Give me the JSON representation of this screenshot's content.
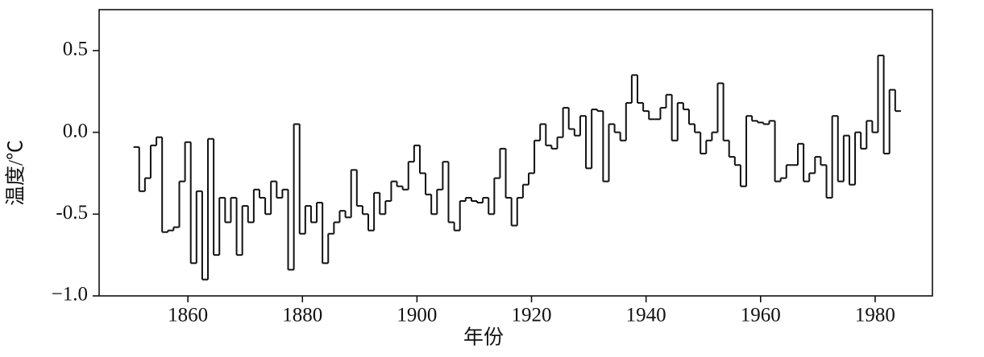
{
  "chart_data": {
    "type": "step",
    "xlabel": "年份",
    "ylabel": "温度/℃",
    "x": [
      1851,
      1852,
      1853,
      1854,
      1855,
      1856,
      1857,
      1858,
      1859,
      1860,
      1861,
      1862,
      1863,
      1864,
      1865,
      1866,
      1867,
      1868,
      1869,
      1870,
      1871,
      1872,
      1873,
      1874,
      1875,
      1876,
      1877,
      1878,
      1879,
      1880,
      1881,
      1882,
      1883,
      1884,
      1885,
      1886,
      1887,
      1888,
      1889,
      1890,
      1891,
      1892,
      1893,
      1894,
      1895,
      1896,
      1897,
      1898,
      1899,
      1900,
      1901,
      1902,
      1903,
      1904,
      1905,
      1906,
      1907,
      1908,
      1909,
      1910,
      1911,
      1912,
      1913,
      1914,
      1915,
      1916,
      1917,
      1918,
      1919,
      1920,
      1921,
      1922,
      1923,
      1924,
      1925,
      1926,
      1927,
      1928,
      1929,
      1930,
      1931,
      1932,
      1933,
      1934,
      1935,
      1936,
      1937,
      1938,
      1939,
      1940,
      1941,
      1942,
      1943,
      1944,
      1945,
      1946,
      1947,
      1948,
      1949,
      1950,
      1951,
      1952,
      1953,
      1954,
      1955,
      1956,
      1957,
      1958,
      1959,
      1960,
      1961,
      1962,
      1963,
      1964,
      1965,
      1966,
      1967,
      1968,
      1969,
      1970,
      1971,
      1972,
      1973,
      1974,
      1975,
      1976,
      1977,
      1978,
      1979,
      1980,
      1981,
      1982,
      1983,
      1984
    ],
    "values": [
      -0.09,
      -0.36,
      -0.28,
      -0.08,
      -0.03,
      -0.61,
      -0.6,
      -0.58,
      -0.3,
      -0.06,
      -0.8,
      -0.36,
      -0.9,
      -0.04,
      -0.75,
      -0.4,
      -0.55,
      -0.4,
      -0.75,
      -0.45,
      -0.55,
      -0.35,
      -0.4,
      -0.5,
      -0.3,
      -0.4,
      -0.35,
      -0.84,
      0.05,
      -0.62,
      -0.45,
      -0.55,
      -0.43,
      -0.8,
      -0.62,
      -0.55,
      -0.48,
      -0.52,
      -0.23,
      -0.45,
      -0.5,
      -0.6,
      -0.37,
      -0.5,
      -0.42,
      -0.3,
      -0.33,
      -0.35,
      -0.18,
      -0.08,
      -0.25,
      -0.38,
      -0.5,
      -0.35,
      -0.18,
      -0.55,
      -0.6,
      -0.42,
      -0.4,
      -0.42,
      -0.43,
      -0.4,
      -0.5,
      -0.28,
      -0.1,
      -0.4,
      -0.57,
      -0.4,
      -0.32,
      -0.25,
      -0.05,
      0.05,
      -0.08,
      -0.1,
      -0.03,
      0.15,
      0.02,
      -0.02,
      0.1,
      -0.22,
      0.14,
      0.13,
      -0.3,
      0.05,
      0.0,
      -0.05,
      0.18,
      0.35,
      0.18,
      0.13,
      0.08,
      0.08,
      0.15,
      0.23,
      -0.05,
      0.18,
      0.14,
      0.05,
      0.0,
      -0.13,
      -0.05,
      0.0,
      0.3,
      -0.05,
      -0.15,
      -0.2,
      -0.33,
      0.1,
      0.07,
      0.06,
      0.05,
      0.07,
      -0.3,
      -0.28,
      -0.2,
      -0.2,
      -0.07,
      -0.3,
      -0.25,
      -0.15,
      -0.2,
      -0.4,
      0.1,
      -0.3,
      -0.02,
      -0.32,
      0.0,
      -0.1,
      0.07,
      0.0,
      0.47,
      -0.13,
      0.26,
      0.13
    ],
    "color": "#111111",
    "xlim": [
      1844.5,
      1990
    ],
    "xticks": [
      1860,
      1880,
      1900,
      1920,
      1940,
      1960,
      1980
    ],
    "ylim": [
      -1.0,
      0.75
    ],
    "yticks": [
      {
        "value": -1.0,
        "label": "−1.0"
      },
      -0.5,
      {
        "value": 0,
        "label": "0.0"
      },
      0.5
    ]
  }
}
